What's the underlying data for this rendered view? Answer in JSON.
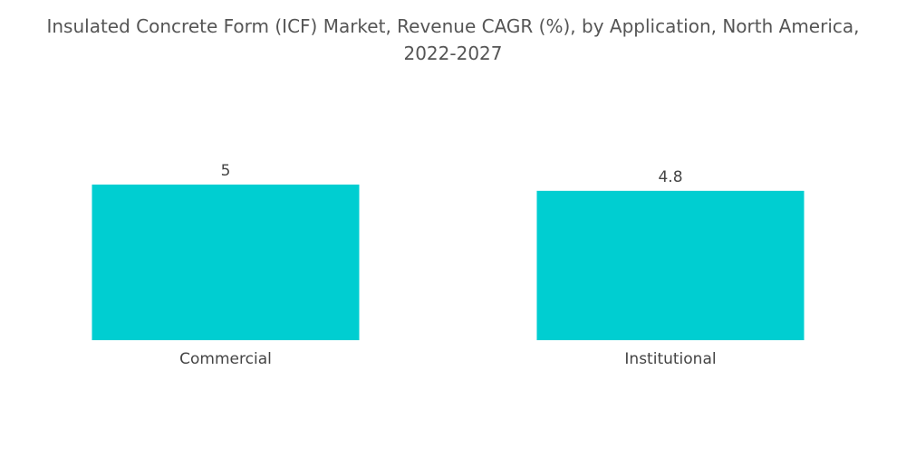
{
  "chart_data": {
    "type": "bar",
    "title_lines": [
      "Insulated Concrete Form (ICF) Market, Revenue CAGR (%), by Application, North America,",
      "2022-2027"
    ],
    "categories": [
      "Commercial",
      "Institutional"
    ],
    "values": [
      5,
      4.8
    ],
    "value_labels": [
      "5",
      "4.8"
    ],
    "bar_color": "#00CED1",
    "grid": false,
    "legend": "none"
  }
}
